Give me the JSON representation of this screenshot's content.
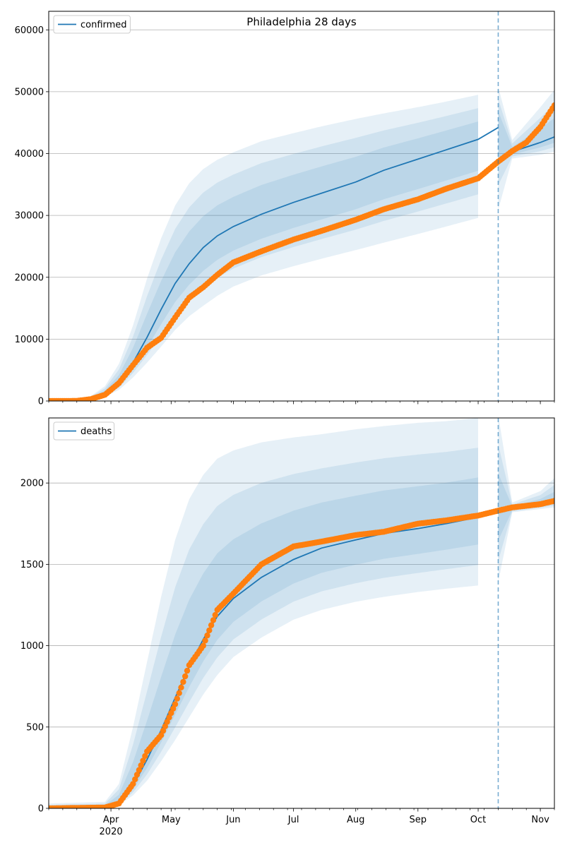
{
  "chart_data": [
    {
      "type": "line",
      "title": "Philadelphia 28 days",
      "legend": {
        "placement": "top-left",
        "entries": [
          "confirmed"
        ]
      },
      "grid": {
        "y": true,
        "x": false
      },
      "forecast_start": "2020-10-11",
      "xlim": [
        "2020-03-01",
        "2020-11-08"
      ],
      "ylim": [
        0,
        63000
      ],
      "yticks": [
        0,
        10000,
        20000,
        30000,
        40000,
        50000,
        60000
      ],
      "xticks": [],
      "colors": {
        "model": "#1f77b4",
        "observed": "#ff7f0e",
        "band": "#1f77b4"
      },
      "series": [
        {
          "name": "confirmed",
          "kind": "model-median",
          "x": [
            "2020-03-01",
            "2020-03-15",
            "2020-03-22",
            "2020-03-29",
            "2020-04-05",
            "2020-04-12",
            "2020-04-19",
            "2020-04-26",
            "2020-05-03",
            "2020-05-10",
            "2020-05-17",
            "2020-05-24",
            "2020-06-01",
            "2020-06-15",
            "2020-07-01",
            "2020-07-15",
            "2020-08-01",
            "2020-08-15",
            "2020-09-01",
            "2020-09-15",
            "2020-10-01",
            "2020-10-11",
            "2020-10-18",
            "2020-11-01",
            "2020-11-08"
          ],
          "y": [
            0,
            100,
            400,
            1200,
            3000,
            6200,
            10300,
            14800,
            19000,
            22200,
            24800,
            26700,
            28200,
            30200,
            32100,
            33600,
            35400,
            37300,
            39100,
            40600,
            42300,
            44200,
            40300,
            41800,
            42700
          ]
        },
        {
          "kind": "observed",
          "x": [
            "2020-03-01",
            "2020-03-15",
            "2020-03-22",
            "2020-03-29",
            "2020-04-05",
            "2020-04-12",
            "2020-04-19",
            "2020-04-26",
            "2020-05-03",
            "2020-05-10",
            "2020-05-17",
            "2020-05-24",
            "2020-06-01",
            "2020-06-15",
            "2020-07-01",
            "2020-07-15",
            "2020-08-01",
            "2020-08-15",
            "2020-09-01",
            "2020-09-15",
            "2020-10-01",
            "2020-10-11",
            "2020-10-18",
            "2020-10-25",
            "2020-11-01",
            "2020-11-08"
          ],
          "y": [
            0,
            20,
            300,
            1000,
            2900,
            5800,
            8600,
            10200,
            13500,
            16700,
            18400,
            20400,
            22400,
            24200,
            26100,
            27500,
            29300,
            31000,
            32600,
            34300,
            36000,
            38700,
            40400,
            41800,
            44300,
            47800
          ]
        },
        {
          "kind": "interval",
          "x": [
            "2020-03-01",
            "2020-03-15",
            "2020-03-22",
            "2020-03-29",
            "2020-04-05",
            "2020-04-12",
            "2020-04-19",
            "2020-04-26",
            "2020-05-03",
            "2020-05-10",
            "2020-05-17",
            "2020-05-24",
            "2020-06-01",
            "2020-06-15",
            "2020-07-01",
            "2020-07-15",
            "2020-08-01",
            "2020-08-15",
            "2020-09-01",
            "2020-09-15",
            "2020-10-01",
            "2020-10-11",
            "2020-10-18",
            "2020-11-01",
            "2020-11-08"
          ],
          "lower": [
            0,
            50,
            200,
            700,
            1800,
            3800,
            6200,
            8800,
            11500,
            13700,
            15400,
            17000,
            18500,
            20300,
            21800,
            23000,
            24400,
            25600,
            27000,
            28200,
            29600,
            30900,
            39200,
            39800,
            40300
          ],
          "upper": [
            0,
            200,
            800,
            2400,
            6000,
            12200,
            19800,
            26300,
            31600,
            35200,
            37500,
            39000,
            40200,
            42000,
            43300,
            44400,
            45600,
            46500,
            47500,
            48400,
            49500,
            50800,
            42200,
            47500,
            50300
          ]
        }
      ]
    },
    {
      "type": "line",
      "title": "",
      "legend": {
        "placement": "top-left",
        "entries": [
          "deaths"
        ]
      },
      "grid": {
        "y": true,
        "x": false
      },
      "forecast_start": "2020-10-11",
      "xlim": [
        "2020-03-01",
        "2020-11-08"
      ],
      "ylim": [
        0,
        2400
      ],
      "yticks": [
        0,
        500,
        1000,
        1500,
        2000
      ],
      "xticks": [
        {
          "date": "2020-04-01",
          "label": "Apr",
          "sublabel": "2020"
        },
        {
          "date": "2020-05-01",
          "label": "May"
        },
        {
          "date": "2020-06-01",
          "label": "Jun"
        },
        {
          "date": "2020-07-01",
          "label": "Jul"
        },
        {
          "date": "2020-08-01",
          "label": "Aug"
        },
        {
          "date": "2020-09-01",
          "label": "Sep"
        },
        {
          "date": "2020-10-01",
          "label": "Oct"
        },
        {
          "date": "2020-11-01",
          "label": "Nov"
        }
      ],
      "colors": {
        "model": "#1f77b4",
        "observed": "#ff7f0e",
        "band": "#1f77b4"
      },
      "series": [
        {
          "name": "deaths",
          "kind": "model-median",
          "x": [
            "2020-03-01",
            "2020-03-29",
            "2020-04-05",
            "2020-04-12",
            "2020-04-19",
            "2020-04-26",
            "2020-05-03",
            "2020-05-10",
            "2020-05-17",
            "2020-05-24",
            "2020-06-01",
            "2020-06-15",
            "2020-07-01",
            "2020-07-15",
            "2020-08-01",
            "2020-08-15",
            "2020-09-01",
            "2020-09-15",
            "2020-10-01",
            "2020-10-11",
            "2020-10-18",
            "2020-11-01",
            "2020-11-08"
          ],
          "y": [
            0,
            5,
            40,
            140,
            300,
            480,
            680,
            870,
            1040,
            1180,
            1290,
            1420,
            1530,
            1600,
            1650,
            1690,
            1720,
            1750,
            1790,
            1820,
            1840,
            1870,
            1890
          ]
        },
        {
          "kind": "observed",
          "x": [
            "2020-03-01",
            "2020-03-29",
            "2020-04-05",
            "2020-04-12",
            "2020-04-19",
            "2020-04-26",
            "2020-05-03",
            "2020-05-10",
            "2020-05-17",
            "2020-05-24",
            "2020-06-01",
            "2020-06-15",
            "2020-07-01",
            "2020-07-15",
            "2020-08-01",
            "2020-08-15",
            "2020-09-01",
            "2020-09-15",
            "2020-10-01",
            "2020-10-11",
            "2020-10-18",
            "2020-11-01",
            "2020-11-08"
          ],
          "y": [
            0,
            5,
            30,
            150,
            350,
            450,
            640,
            880,
            1000,
            1220,
            1320,
            1500,
            1610,
            1640,
            1680,
            1700,
            1750,
            1770,
            1800,
            1830,
            1850,
            1870,
            1890
          ]
        },
        {
          "kind": "interval",
          "x": [
            "2020-03-01",
            "2020-03-29",
            "2020-04-05",
            "2020-04-12",
            "2020-04-19",
            "2020-04-26",
            "2020-05-03",
            "2020-05-10",
            "2020-05-17",
            "2020-05-24",
            "2020-06-01",
            "2020-06-15",
            "2020-07-01",
            "2020-07-15",
            "2020-08-01",
            "2020-08-15",
            "2020-09-01",
            "2020-09-15",
            "2020-10-01",
            "2020-10-11",
            "2020-10-18",
            "2020-11-01",
            "2020-11-08"
          ],
          "lower": [
            0,
            0,
            20,
            80,
            170,
            290,
            420,
            560,
            700,
            820,
            930,
            1050,
            1160,
            1220,
            1270,
            1300,
            1330,
            1350,
            1370,
            1390,
            1820,
            1840,
            1850
          ],
          "upper": [
            30,
            40,
            150,
            500,
            900,
            1300,
            1650,
            1900,
            2050,
            2150,
            2200,
            2250,
            2280,
            2300,
            2330,
            2350,
            2370,
            2380,
            2400,
            2420,
            1880,
            1950,
            2030
          ]
        }
      ]
    }
  ]
}
